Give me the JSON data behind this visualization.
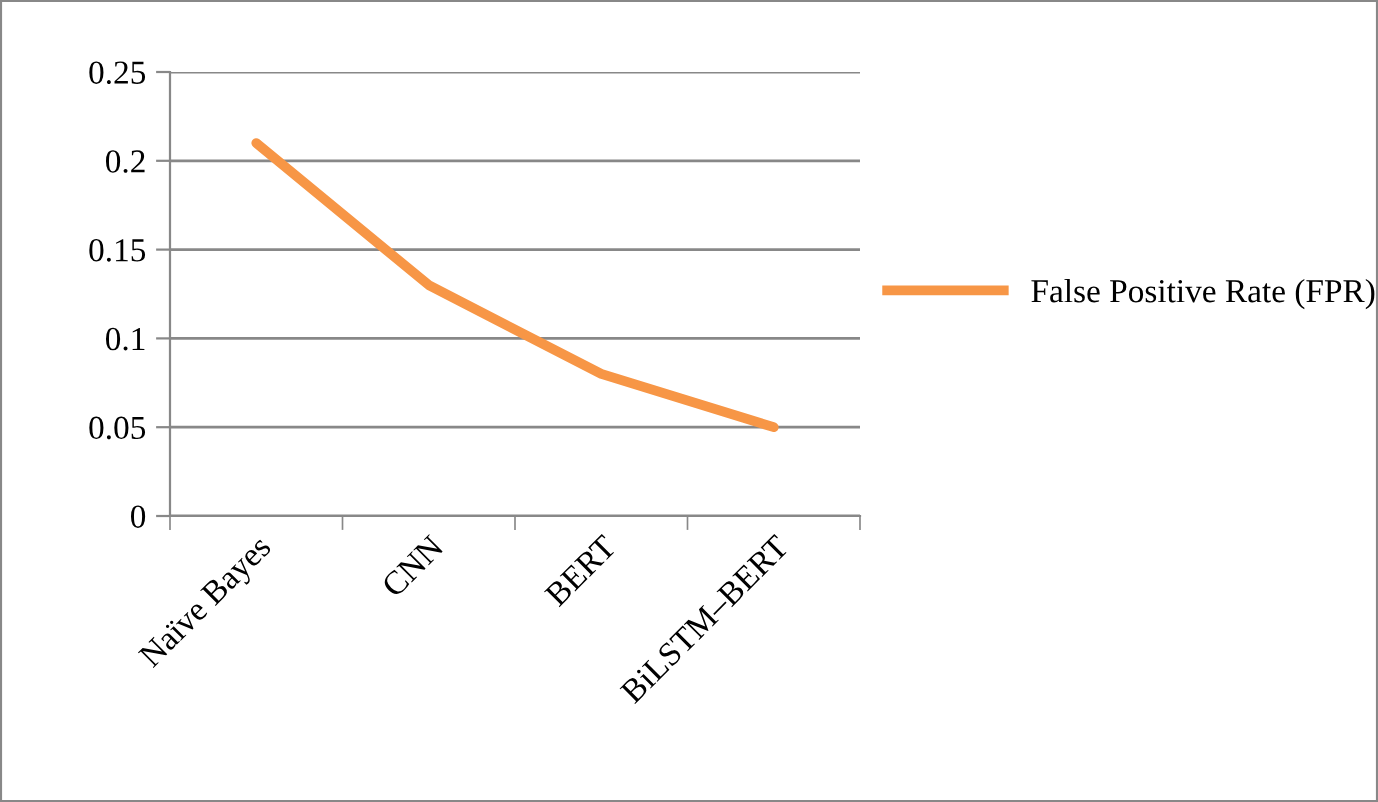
{
  "chart_data": {
    "type": "line",
    "categories": [
      "Naïve Bayes",
      "CNN",
      "BERT",
      "BiLSTM–BERT"
    ],
    "series": [
      {
        "name": "False Positive Rate (FPR)",
        "color": "#f79646",
        "values": [
          0.21,
          0.13,
          0.08,
          0.05
        ]
      }
    ],
    "ylim": [
      0,
      0.25
    ],
    "yticks": [
      0,
      0.05,
      0.1,
      0.15,
      0.2,
      0.25
    ],
    "grid": "y",
    "legend": "right",
    "marker": "none",
    "line_style": "solid"
  }
}
